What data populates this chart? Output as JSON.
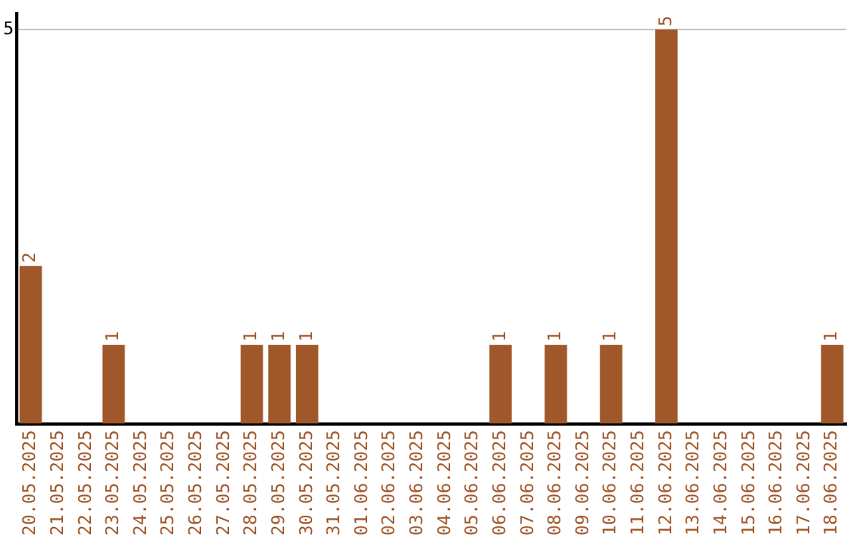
{
  "chart_data": {
    "type": "bar",
    "categories": [
      "20.05.2025",
      "21.05.2025",
      "22.05.2025",
      "23.05.2025",
      "24.05.2025",
      "25.05.2025",
      "26.05.2025",
      "27.05.2025",
      "28.05.2025",
      "29.05.2025",
      "30.05.2025",
      "31.05.2025",
      "01.06.2025",
      "02.06.2025",
      "03.06.2025",
      "04.06.2025",
      "05.06.2025",
      "06.06.2025",
      "07.06.2025",
      "08.06.2025",
      "09.06.2025",
      "10.06.2025",
      "11.06.2025",
      "12.06.2025",
      "13.06.2025",
      "14.06.2025",
      "15.06.2025",
      "16.06.2025",
      "17.06.2025",
      "18.06.2025"
    ],
    "values": [
      2,
      0,
      0,
      1,
      0,
      0,
      0,
      0,
      1,
      1,
      1,
      0,
      0,
      0,
      0,
      0,
      0,
      1,
      0,
      1,
      0,
      1,
      0,
      5,
      0,
      0,
      0,
      0,
      0,
      1
    ],
    "value_labels": [
      "2",
      null,
      null,
      "1",
      null,
      null,
      null,
      null,
      "1",
      "1",
      "1",
      null,
      null,
      null,
      null,
      null,
      null,
      "1",
      null,
      "1",
      null,
      "1",
      null,
      "5",
      null,
      null,
      null,
      null,
      null,
      "1"
    ],
    "color": "#a0572a",
    "ylim": [
      0,
      5.2
    ],
    "yticks": [
      5
    ],
    "grid": "y",
    "legend": false
  }
}
